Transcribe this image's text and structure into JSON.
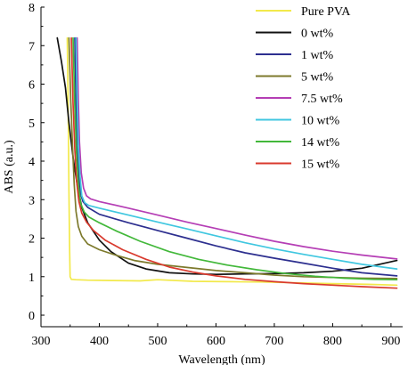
{
  "chart_data": {
    "type": "line",
    "title": "",
    "xlabel": "Wavelength (nm)",
    "ylabel": "ABS (a.u.)",
    "xlim": [
      300,
      920
    ],
    "ylim": [
      -0.3,
      8
    ],
    "x_ticks": [
      300,
      400,
      500,
      600,
      700,
      800,
      900
    ],
    "y_ticks": [
      0,
      1,
      2,
      3,
      4,
      5,
      6,
      7,
      8
    ],
    "grid": false,
    "legend_position": "top-right",
    "series": [
      {
        "name": "Pure PVA",
        "color": "#f2e94b",
        "x": [
          345,
          346,
          347,
          348,
          349,
          350,
          352,
          360,
          380,
          420,
          470,
          500,
          560,
          620,
          680,
          740,
          800,
          860,
          910
        ],
        "y": [
          7.2,
          6.2,
          4.8,
          3.2,
          1.8,
          1.0,
          0.93,
          0.92,
          0.91,
          0.9,
          0.89,
          0.92,
          0.88,
          0.87,
          0.86,
          0.84,
          0.82,
          0.8,
          0.78
        ]
      },
      {
        "name": "0 wt%",
        "color": "#111111",
        "x": [
          328,
          335,
          342,
          348,
          355,
          362,
          370,
          380,
          400,
          420,
          450,
          480,
          520,
          560,
          600,
          650,
          700,
          750,
          800,
          850,
          910
        ],
        "y": [
          7.2,
          6.6,
          5.9,
          5.0,
          4.1,
          3.4,
          2.8,
          2.4,
          1.95,
          1.65,
          1.35,
          1.2,
          1.1,
          1.07,
          1.06,
          1.07,
          1.08,
          1.1,
          1.14,
          1.22,
          1.42
        ]
      },
      {
        "name": "1 wt%",
        "color": "#2d2f8f",
        "x": [
          358,
          360,
          362,
          365,
          368,
          372,
          380,
          400,
          450,
          500,
          550,
          600,
          650,
          700,
          750,
          800,
          850,
          910
        ],
        "y": [
          7.2,
          5.5,
          4.4,
          3.6,
          3.15,
          2.95,
          2.8,
          2.62,
          2.4,
          2.2,
          2.0,
          1.8,
          1.62,
          1.48,
          1.35,
          1.22,
          1.1,
          1.02
        ]
      },
      {
        "name": "5 wt%",
        "color": "#7d7a2c",
        "x": [
          348,
          351,
          354,
          357,
          360,
          364,
          370,
          380,
          400,
          430,
          460,
          500,
          550,
          600,
          650,
          700,
          750,
          800,
          850,
          910
        ],
        "y": [
          7.2,
          5.6,
          4.4,
          3.4,
          2.7,
          2.3,
          2.05,
          1.85,
          1.7,
          1.55,
          1.42,
          1.32,
          1.24,
          1.16,
          1.1,
          1.04,
          1.0,
          0.98,
          0.96,
          0.95
        ]
      },
      {
        "name": "7.5 wt%",
        "color": "#b53eb5",
        "x": [
          362,
          364,
          366,
          369,
          373,
          378,
          385,
          400,
          450,
          500,
          550,
          600,
          650,
          700,
          750,
          800,
          850,
          910
        ],
        "y": [
          7.2,
          5.6,
          4.5,
          3.7,
          3.3,
          3.1,
          3.02,
          2.95,
          2.78,
          2.6,
          2.42,
          2.25,
          2.08,
          1.92,
          1.78,
          1.66,
          1.56,
          1.46
        ]
      },
      {
        "name": "10 wt%",
        "color": "#40c7e0",
        "x": [
          360,
          362,
          364,
          367,
          370,
          375,
          382,
          400,
          450,
          500,
          550,
          600,
          650,
          700,
          750,
          800,
          850,
          910
        ],
        "y": [
          7.2,
          5.6,
          4.4,
          3.6,
          3.1,
          2.92,
          2.85,
          2.78,
          2.6,
          2.42,
          2.24,
          2.06,
          1.88,
          1.72,
          1.58,
          1.45,
          1.32,
          1.2
        ]
      },
      {
        "name": "14 wt%",
        "color": "#42b83a",
        "x": [
          355,
          358,
          361,
          364,
          368,
          374,
          382,
          400,
          430,
          470,
          520,
          570,
          620,
          670,
          720,
          770,
          820,
          870,
          910
        ],
        "y": [
          7.2,
          5.4,
          4.2,
          3.4,
          2.9,
          2.68,
          2.55,
          2.4,
          2.18,
          1.92,
          1.65,
          1.45,
          1.3,
          1.18,
          1.08,
          1.01,
          0.96,
          0.93,
          0.92
        ]
      },
      {
        "name": "15 wt%",
        "color": "#d93a2e",
        "x": [
          352,
          355,
          358,
          361,
          365,
          370,
          378,
          390,
          410,
          440,
          480,
          520,
          560,
          600,
          650,
          700,
          750,
          800,
          850,
          910
        ],
        "y": [
          7.2,
          5.5,
          4.3,
          3.5,
          2.95,
          2.65,
          2.42,
          2.2,
          1.95,
          1.7,
          1.45,
          1.25,
          1.12,
          1.02,
          0.93,
          0.87,
          0.82,
          0.78,
          0.74,
          0.7
        ]
      }
    ]
  }
}
